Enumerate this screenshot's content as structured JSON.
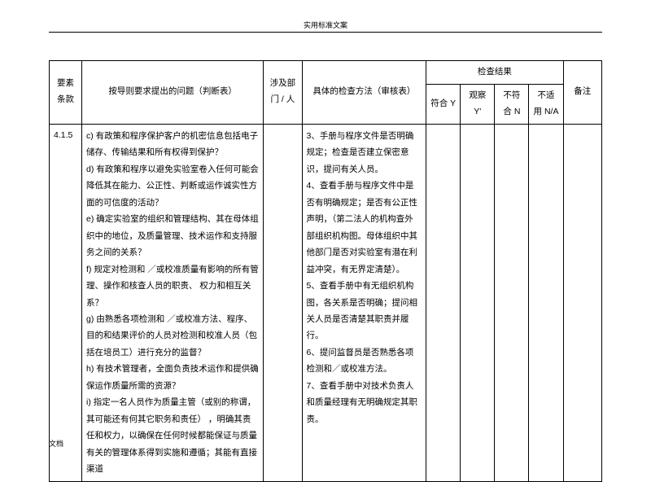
{
  "header": {
    "title": "实用标准文案"
  },
  "footer": {
    "label": "文档"
  },
  "table": {
    "headers": {
      "col1": "要素条款",
      "col2": "按导则要求提出的问题（判断表）",
      "col3": "涉及部门 / 人",
      "col4": "具体的检查方法（审核表）",
      "col5_group": "检查结果",
      "col5a": "符合 Y",
      "col5b": "观察 Y'",
      "col5c": "不符合 N",
      "col5d": "不适用 N/A",
      "col6": "备注"
    },
    "row": {
      "id": "4.1.5",
      "question": "c) 有政策和程序保护客户的机密信息包括电子储存、传输结果和所有权得到保护？\nd) 有政策和程序以避免实验室卷入任何可能会降低其在能力、公正性、判断或运作诚实性方面的可信度的活动？\ne) 确定实验室的组织和管理结构、其在母体组织中的地位，及质量管理、技术运作和支持服务之间的关系？\nf) 规定对检测和 ／或校准质量有影响的所有管理、操作和核查人员的职责、 权力和相互关系？\ng) 由熟悉各项检测和 ／或校准方法、程序、目的和结果评价的人员对检测和校准人员（包括在培员工）进行充分的监督？\nh) 有技术管理者，全面负责技术运作和提供确保运作质量所需的资源？\ni)  指定一名人员作为质量主管（或别的称谓，其可能还有何其它职务和责任） ，明确其责任和权力，以确保在任何时候都能保证与质量有关的管理体系得到实施和遵循；其能有直接渠道",
      "method": "3、手册与程序文件是否明确规定；检查是否建立保密意识，提问有关人员。\n4、查看手册与程序文件中是否有明确规定；是否有公正性声明，（第二法人的机构查外部组织机构图。母体组织中其他部门是否对实验室有潜在利益冲突，有无界定清楚）。\n5、查看手册中有无组织机构图，各关系是否明确；提问相关人员是否清楚其职责并履行。\n6、提问监督员是否熟悉各项检测和／或校准方法。\n7、查看手册中对技术负责人和质量经理有无明确规定其职责。"
    }
  }
}
